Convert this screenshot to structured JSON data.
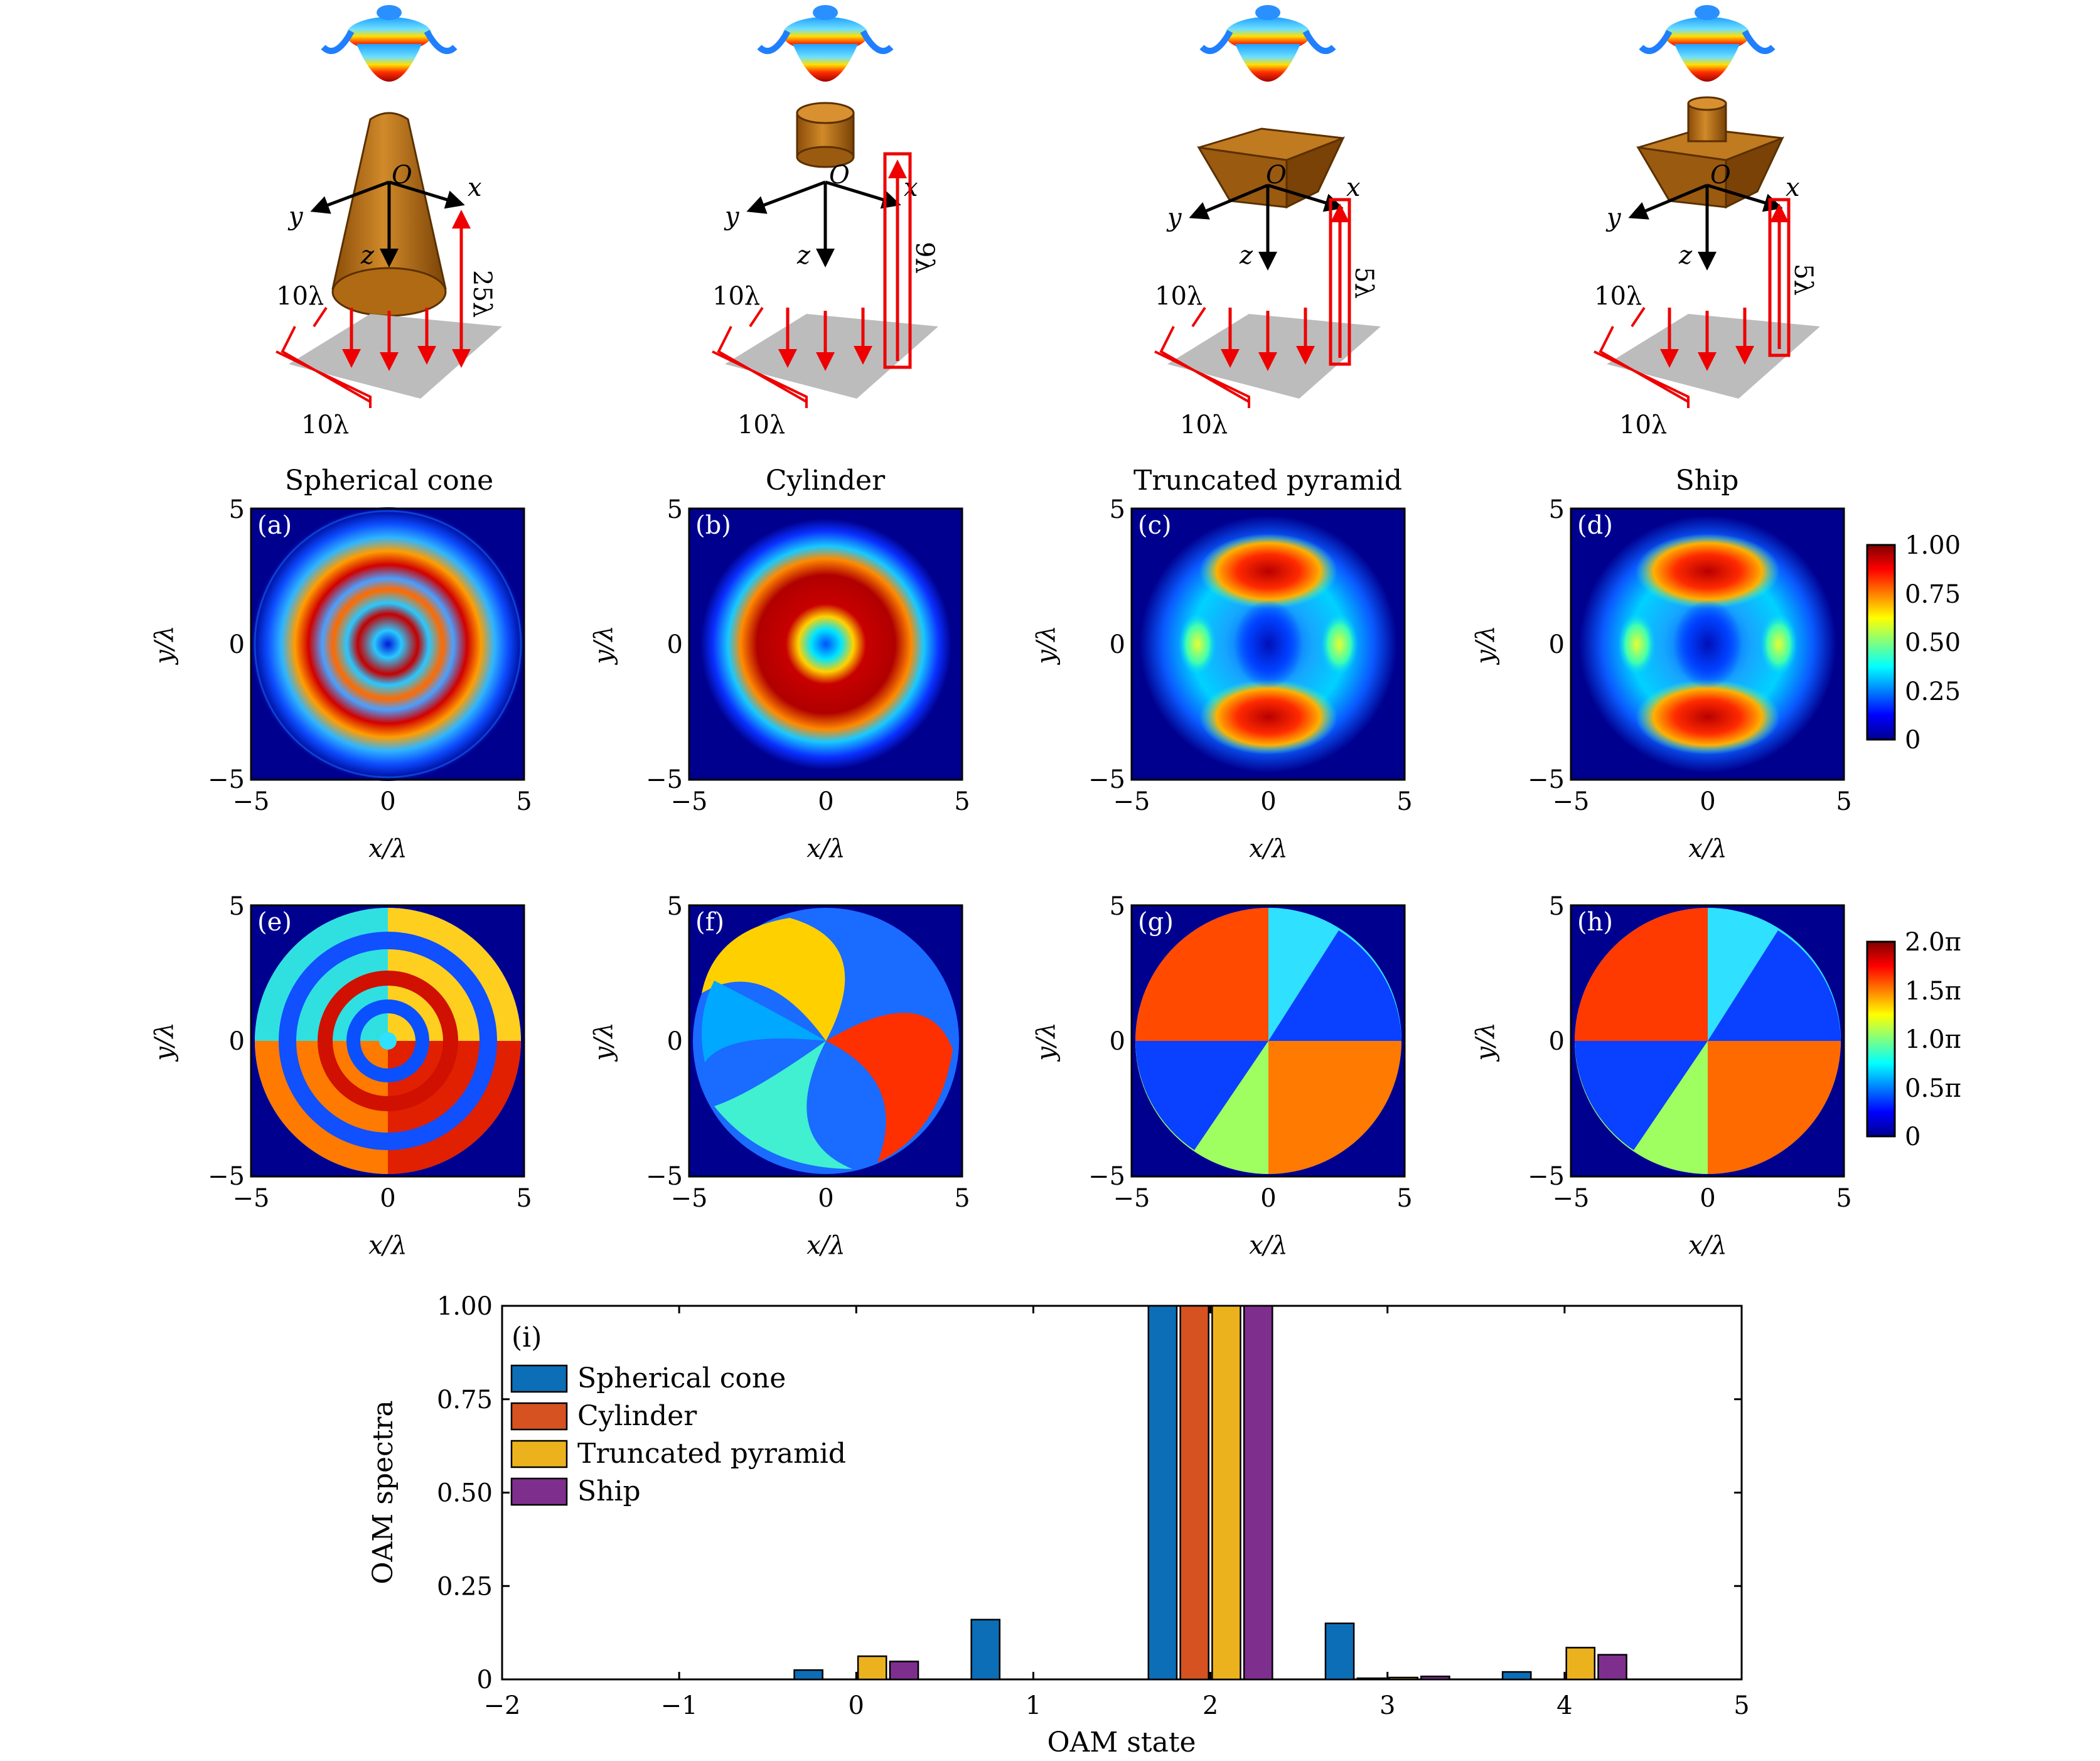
{
  "columns": [
    {
      "title": "Spherical cone",
      "height_label": "25λ",
      "map_panel": "(a)",
      "phase_panel": "(e)",
      "shape": "cone"
    },
    {
      "title": "Cylinder",
      "height_label": "9λ",
      "map_panel": "(b)",
      "phase_panel": "(f)",
      "shape": "cylinder"
    },
    {
      "title": "Truncated pyramid",
      "height_label": "5λ",
      "map_panel": "(c)",
      "phase_panel": "(g)",
      "shape": "pyramid"
    },
    {
      "title": "Ship",
      "height_label": "5λ",
      "map_panel": "(d)",
      "phase_panel": "(h)",
      "shape": "ship"
    }
  ],
  "schematic": {
    "axis_origin": "O",
    "axis_x": "x",
    "axis_y": "y",
    "axis_z": "z",
    "plane_size": "10λ"
  },
  "maps": {
    "xlabel": "x/λ",
    "ylabel": "y/λ",
    "xticks": [
      "−5",
      "0",
      "5"
    ],
    "yticks": [
      "5",
      "0",
      "−5"
    ]
  },
  "colorbars": {
    "intensity_ticks": [
      "1.00",
      "0.75",
      "0.50",
      "0.25",
      "0"
    ],
    "phase_ticks": [
      "2.0π",
      "1.5π",
      "1.0π",
      "0.5π",
      "0"
    ]
  },
  "colors": {
    "arrow": "#ee0000",
    "object": "#b46a12",
    "plane": "#bcbcbc",
    "map_background": "#00008f"
  },
  "chart_data": {
    "type": "bar",
    "panel_label": "(i)",
    "xlabel": "OAM state",
    "ylabel": "OAM spectra",
    "x": [
      -2,
      -1,
      0,
      1,
      2,
      3,
      4,
      5
    ],
    "xtick_labels": [
      "−2",
      "−1",
      "0",
      "1",
      "2",
      "3",
      "4",
      "5"
    ],
    "ytick_labels": [
      "0",
      "0.25",
      "0.50",
      "0.75",
      "1.00"
    ],
    "xlim": [
      -2,
      5
    ],
    "ylim": [
      0,
      1
    ],
    "legend_position": "top-left",
    "series": [
      {
        "name": "Spherical cone",
        "color": "#0c6eb6",
        "values": [
          0.0,
          0.0,
          0.025,
          0.16,
          1.0,
          0.15,
          0.02,
          0.0
        ]
      },
      {
        "name": "Cylinder",
        "color": "#d65220",
        "values": [
          0.0,
          0.0,
          0.0,
          0.0,
          1.0,
          0.003,
          0.0,
          0.0
        ]
      },
      {
        "name": "Truncated pyramid",
        "color": "#ecb21e",
        "values": [
          0.0,
          0.0,
          0.062,
          0.0,
          1.0,
          0.005,
          0.085,
          0.0
        ]
      },
      {
        "name": "Ship",
        "color": "#7e2f8e",
        "values": [
          0.0,
          0.0,
          0.048,
          0.0,
          1.0,
          0.008,
          0.066,
          0.0
        ]
      }
    ]
  }
}
